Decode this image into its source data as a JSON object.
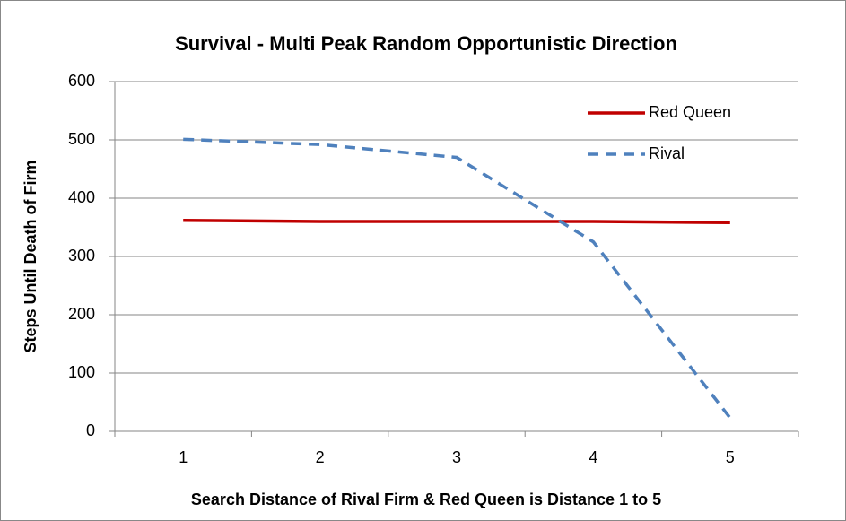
{
  "chart_data": {
    "type": "line",
    "title": "Survival - Multi Peak Random Opportunistic Direction",
    "x_label": "Search Distance of Rival Firm & Red Queen is Distance 1 to 5",
    "y_label": "Steps Until Death of Firm",
    "categories": [
      "1",
      "2",
      "3",
      "4",
      "5"
    ],
    "series": [
      {
        "name": "Red Queen",
        "color": "#c00000",
        "dash": "solid",
        "values": [
          362,
          360,
          360,
          360,
          358
        ]
      },
      {
        "name": "Rival",
        "color": "#4f81bd",
        "dash": "dashed",
        "values": [
          501,
          492,
          470,
          325,
          23
        ]
      }
    ],
    "ylim": [
      0,
      600
    ],
    "yticks": [
      0,
      100,
      200,
      300,
      400,
      500,
      600
    ],
    "grid": true,
    "legend": "top-right"
  }
}
